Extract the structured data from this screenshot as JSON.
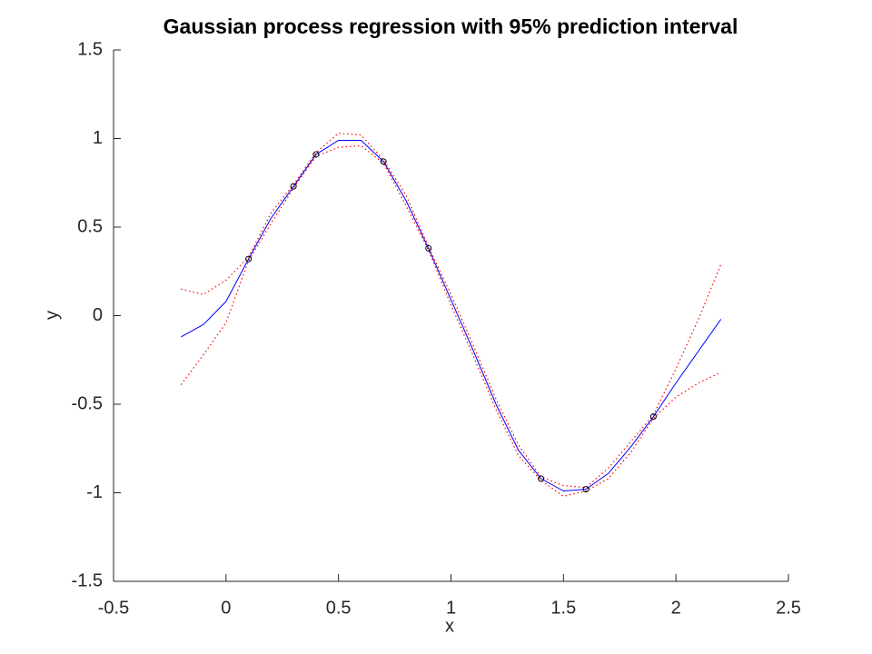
{
  "chart_data": {
    "type": "line",
    "title": "Gaussian process regression with 95% prediction interval",
    "xlabel": "x",
    "ylabel": "y",
    "xlim": [
      -0.5,
      2.5
    ],
    "ylim": [
      -1.5,
      1.5
    ],
    "xticks": [
      -0.5,
      0,
      0.5,
      1,
      1.5,
      2,
      2.5
    ],
    "yticks": [
      -1.5,
      -1,
      -0.5,
      0,
      0.5,
      1,
      1.5
    ],
    "x": [
      -0.2,
      -0.1,
      0,
      0.1,
      0.2,
      0.3,
      0.4,
      0.5,
      0.6,
      0.7,
      0.8,
      0.9,
      1.0,
      1.1,
      1.2,
      1.3,
      1.4,
      1.5,
      1.6,
      1.7,
      1.8,
      1.9,
      2.0,
      2.1,
      2.2
    ],
    "series": [
      {
        "color": "#0000ff",
        "style": "solid",
        "values": [
          -0.12,
          -0.05,
          0.08,
          0.32,
          0.55,
          0.73,
          0.91,
          0.99,
          0.99,
          0.87,
          0.65,
          0.38,
          0.09,
          -0.2,
          -0.5,
          -0.76,
          -0.92,
          -0.99,
          -0.98,
          -0.89,
          -0.74,
          -0.57,
          -0.38,
          -0.2,
          -0.02
        ]
      },
      {
        "color": "#ff0000",
        "style": "dotted",
        "values": [
          0.15,
          0.12,
          0.2,
          0.33,
          0.58,
          0.74,
          0.92,
          1.03,
          1.02,
          0.88,
          0.68,
          0.39,
          0.12,
          -0.17,
          -0.47,
          -0.73,
          -0.91,
          -0.96,
          -0.97,
          -0.86,
          -0.71,
          -0.56,
          -0.3,
          -0.02,
          0.29
        ]
      },
      {
        "color": "#ff0000",
        "style": "dotted",
        "values": [
          -0.39,
          -0.22,
          -0.04,
          0.31,
          0.52,
          0.72,
          0.9,
          0.95,
          0.96,
          0.86,
          0.62,
          0.37,
          0.06,
          -0.23,
          -0.53,
          -0.79,
          -0.93,
          -1.02,
          -0.99,
          -0.92,
          -0.77,
          -0.58,
          -0.46,
          -0.38,
          -0.32
        ]
      }
    ],
    "points": {
      "color": "#000000",
      "x": [
        0.1,
        0.3,
        0.4,
        0.7,
        0.9,
        1.4,
        1.6,
        1.9
      ],
      "y": [
        0.32,
        0.73,
        0.91,
        0.87,
        0.38,
        -0.92,
        -0.98,
        -0.57
      ]
    }
  }
}
